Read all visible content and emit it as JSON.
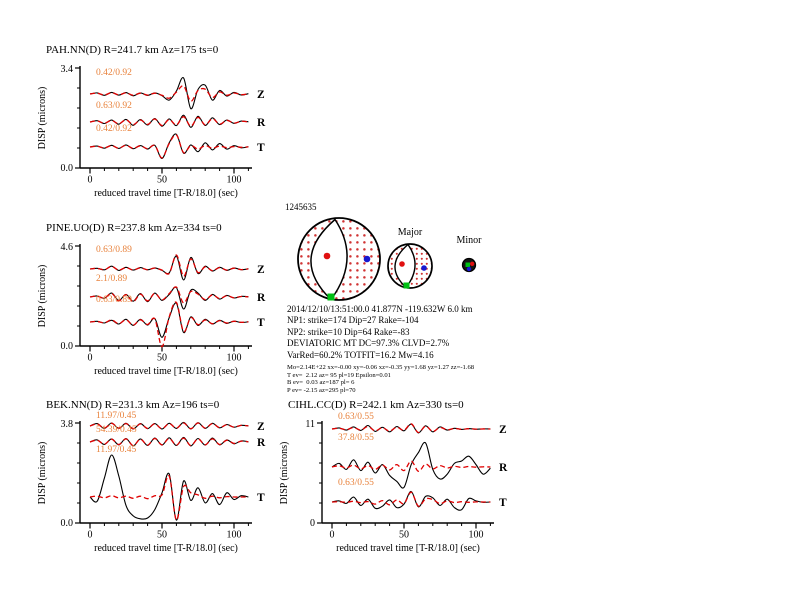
{
  "palette": {
    "observed_color": "#000000",
    "synthetic_color": "#e00000",
    "amp_label_color": "#e8823c",
    "stipple_color": "#d03434",
    "marker_red": "#e01010",
    "marker_green": "#00c014",
    "marker_blue": "#1818d0"
  },
  "event": {
    "id": "1245635",
    "major_label": "Major",
    "minor_label": "Minor",
    "info_lines": [
      "2014/12/10/13:51:00.0 41.877N -119.632W 6.0 km",
      "NP1: strike=174 Dip=27 Rake=-104",
      "NP2: strike=10 Dip=64 Rake=-83",
      "DEVIATORIC MT DC=97.3% CLVD=2.7%",
      "VarRed=60.2% TOTFIT=16.2 Mw=4.16"
    ],
    "mt_lines": [
      "Mo=2.14E+22 xx=-0.00 xy=-0.06 xz=-0.35 yy=1.68 yz=1.27 zz=-1.68",
      "T ev=  2.12 az= 95 pl=19 Epsilon=0.01",
      "B ev=  0.03 az=187 pl= 6",
      "P ev= -2.15 az=295 pl=70"
    ]
  },
  "chart_data": [
    {
      "type": "line",
      "title": "PAH.NN(D) R=241.7 km Az=175 ts=0",
      "xlabel": "reduced travel time [T-R/18.0] (sec)",
      "ylabel": "DISP (microns)",
      "xlim": [
        0,
        113
      ],
      "xticks": [
        0,
        50,
        100
      ],
      "sample_dt_sec": 5,
      "ymax_label": "3.4",
      "ymin_label": "0.0",
      "traces": [
        {
          "label": "Z",
          "amp_label": "0.42/0.92",
          "center": 38,
          "scale": 16,
          "data": [
            0,
            0.07,
            -0.08,
            0.1,
            -0.07,
            0.09,
            -0.11,
            0.07,
            -0.09,
            0.07,
            -0.1,
            -0.38,
            0.18,
            1.0,
            -0.92,
            0.28,
            0.55,
            -0.38,
            0.22,
            -0.13,
            0.1,
            -0.06,
            0.02
          ],
          "synth": [
            0,
            0.05,
            -0.06,
            0.08,
            -0.05,
            0.07,
            -0.08,
            0.05,
            -0.07,
            0.05,
            -0.08,
            -0.26,
            0.12,
            0.5,
            -0.45,
            0.22,
            0.3,
            -0.22,
            0.13,
            -0.08,
            0.06,
            -0.04,
            0.01
          ]
        },
        {
          "label": "R",
          "amp_label": "0.63/0.92",
          "center": 66,
          "scale": 11,
          "data": [
            0,
            0.12,
            -0.14,
            0.17,
            -0.2,
            0.24,
            -0.3,
            0.22,
            -0.27,
            0.32,
            -0.38,
            0.28,
            -0.33,
            0.62,
            -0.48,
            0.52,
            -0.32,
            0.38,
            -0.24,
            0.18,
            -0.12,
            0.08,
            0.02
          ],
          "synth": [
            0,
            0.1,
            -0.11,
            0.14,
            -0.16,
            0.2,
            -0.24,
            0.18,
            -0.22,
            0.27,
            -0.32,
            0.22,
            -0.27,
            0.48,
            -0.38,
            0.42,
            -0.26,
            0.3,
            -0.19,
            0.15,
            -0.1,
            0.06,
            0.01
          ]
        },
        {
          "label": "T",
          "amp_label": "0.42/0.92",
          "center": 91,
          "scale": 13,
          "data": [
            0,
            0.07,
            -0.09,
            0.13,
            -0.11,
            0.16,
            -0.13,
            0.11,
            -0.16,
            0.13,
            -0.88,
            0.32,
            0.98,
            -0.48,
            0.16,
            -0.36,
            0.32,
            -0.22,
            0.26,
            -0.16,
            0.1,
            -0.06,
            0.02
          ],
          "synth": [
            0,
            0.05,
            -0.07,
            0.11,
            -0.09,
            0.13,
            -0.11,
            0.09,
            -0.13,
            0.11,
            -0.84,
            0.27,
            0.93,
            -0.43,
            0.11,
            -0.16,
            0.11,
            -0.09,
            0.07,
            -0.05,
            0.03,
            -0.02,
            0.01
          ]
        }
      ]
    },
    {
      "type": "line",
      "title": "PINE.UO(D) R=237.8 km Az=334 ts=0",
      "xlabel": "reduced travel time [T-R/18.0] (sec)",
      "ylabel": "DISP (microns)",
      "xlim": [
        0,
        113
      ],
      "xticks": [
        0,
        50,
        100
      ],
      "sample_dt_sec": 5,
      "ymax_label": "4.6",
      "ymin_label": "0.0",
      "traces": [
        {
          "label": "Z",
          "amp_label": "0.63/0.89",
          "center": 35,
          "scale": 14,
          "data": [
            0,
            0.05,
            -0.06,
            0.2,
            -0.1,
            0.12,
            -0.08,
            0.1,
            -0.06,
            0.08,
            -0.1,
            -0.28,
            0.92,
            -0.78,
            0.82,
            -0.32,
            0.2,
            -0.15,
            0.12,
            -0.1,
            0.08,
            -0.05,
            0.02
          ],
          "synth": [
            0,
            0.04,
            -0.05,
            0.18,
            -0.08,
            0.1,
            -0.07,
            0.08,
            -0.05,
            0.07,
            -0.08,
            -0.32,
            1.0,
            -0.52,
            0.72,
            -0.26,
            0.16,
            -0.12,
            0.1,
            -0.08,
            0.06,
            -0.04,
            0.01
          ]
        },
        {
          "label": "R",
          "amp_label": "2.1/0.89",
          "center": 63,
          "scale": 13,
          "data": [
            0,
            0.08,
            -0.1,
            0.3,
            -0.26,
            0.2,
            -0.32,
            0.26,
            -0.36,
            0.3,
            -0.26,
            0.2,
            0.72,
            -0.92,
            0.52,
            0.3,
            -0.26,
            0.2,
            -0.16,
            0.12,
            -0.08,
            0.05,
            0.02
          ],
          "synth": [
            0,
            0.06,
            -0.08,
            0.28,
            -0.3,
            0.18,
            -0.36,
            0.22,
            -0.3,
            0.28,
            -0.22,
            0.26,
            0.76,
            -0.46,
            0.42,
            0.22,
            -0.2,
            0.16,
            -0.12,
            0.1,
            -0.06,
            0.04,
            0.01
          ]
        },
        {
          "label": "T",
          "amp_label": "0.63/0.89",
          "center": 88,
          "scale": 17,
          "data": [
            0,
            0.04,
            -0.06,
            0.1,
            -0.12,
            0.16,
            -0.2,
            0.16,
            -0.18,
            0.2,
            -0.9,
            0.26,
            1.1,
            -0.62,
            0.3,
            -0.2,
            0.16,
            -0.12,
            0.1,
            -0.08,
            0.05,
            -0.03,
            0.01
          ],
          "synth": [
            0,
            0.03,
            -0.05,
            0.12,
            -0.1,
            0.13,
            -0.18,
            0.13,
            -0.15,
            0.18,
            -1.45,
            0.3,
            1.15,
            -0.56,
            0.26,
            -0.16,
            0.12,
            -0.1,
            0.08,
            -0.06,
            0.04,
            -0.02,
            0.01
          ]
        }
      ]
    },
    {
      "type": "line",
      "title": "BEK.NN(D) R=231.3 km Az=196 ts=0",
      "xlabel": "reduced travel time [T-R/18.0] (sec)",
      "ylabel": "DISP (microns)",
      "xlim": [
        0,
        113
      ],
      "xticks": [
        0,
        50,
        100
      ],
      "sample_dt_sec": 5,
      "ymax_label": "3.8",
      "ymin_label": "0.0",
      "traces": [
        {
          "label": "Z",
          "amp_label": "11.97/0.45",
          "center": 15,
          "scale": 6,
          "data": [
            0,
            0.4,
            -0.4,
            0.5,
            -0.4,
            0.45,
            -0.5,
            0.4,
            -0.45,
            0.4,
            -0.5,
            0.45,
            -0.4,
            0.6,
            -0.5,
            0.55,
            -0.4,
            0.45,
            -0.3,
            0.25,
            -0.2,
            0.12,
            0.02
          ],
          "synth": [
            0,
            0.35,
            -0.35,
            0.45,
            -0.35,
            0.4,
            -0.45,
            0.35,
            -0.4,
            0.35,
            -0.45,
            0.4,
            -0.35,
            0.5,
            -0.45,
            0.5,
            -0.35,
            0.4,
            -0.28,
            0.22,
            -0.18,
            0.1,
            0.02
          ]
        },
        {
          "label": "R",
          "amp_label": "54.39/0.45",
          "center": 31,
          "scale": 7,
          "data": [
            0,
            0.3,
            -0.35,
            0.45,
            -0.4,
            0.5,
            -0.55,
            0.45,
            -0.5,
            0.55,
            -0.45,
            0.6,
            -0.5,
            0.65,
            -0.55,
            0.5,
            -0.45,
            0.55,
            -0.4,
            0.3,
            -0.25,
            0.15,
            0.02
          ],
          "synth": [
            0,
            0.25,
            -0.3,
            0.4,
            -0.35,
            0.45,
            -0.5,
            0.4,
            -0.45,
            0.5,
            -0.4,
            0.5,
            -0.45,
            0.55,
            -0.5,
            0.45,
            -0.4,
            0.45,
            -0.35,
            0.25,
            -0.2,
            0.12,
            0.02
          ]
        },
        {
          "label": "T",
          "amp_label": "11.97/0.45",
          "center": 86,
          "scale": 42,
          "data": [
            0,
            -0.1,
            0.45,
            1.0,
            0.5,
            -0.2,
            -0.45,
            -0.52,
            -0.5,
            -0.3,
            0.1,
            0.55,
            -0.55,
            0.38,
            -0.08,
            0.22,
            -0.14,
            0.08,
            -0.18,
            0.1,
            -0.06,
            0.03,
            0
          ],
          "synth": [
            0,
            0.02,
            -0.02,
            0.03,
            -0.02,
            0.02,
            -0.03,
            0.02,
            -0.04,
            0.03,
            0.05,
            0.5,
            -0.55,
            0.25,
            0.1,
            0.05,
            -0.03,
            0.02,
            -0.02,
            0.01,
            0,
            0,
            0
          ]
        }
      ]
    },
    {
      "type": "line",
      "title": "CIHL.CC(D) R=242.1 km Az=330 ts=0",
      "xlabel": "reduced travel time [T-R/18.0] (sec)",
      "ylabel": "DISP (microns)",
      "xlim": [
        0,
        113
      ],
      "xticks": [
        0,
        50,
        100
      ],
      "sample_dt_sec": 5,
      "ymax_label": "11",
      "ymin_label": "0",
      "traces": [
        {
          "label": "Z",
          "amp_label": "0.63/0.55",
          "center": 18,
          "scale": 7,
          "data": [
            0,
            0.15,
            -0.15,
            0.3,
            -0.2,
            0.5,
            -0.35,
            0.25,
            -0.4,
            0.35,
            -0.25,
            0.7,
            -0.55,
            0.45,
            -0.4,
            0.3,
            -0.15,
            0.1,
            -0.06,
            0.05,
            -0.03,
            0.02,
            0
          ],
          "synth": [
            0,
            0.1,
            -0.1,
            0.2,
            -0.15,
            0.35,
            -0.25,
            0.18,
            -0.3,
            0.25,
            -0.18,
            0.75,
            -0.5,
            0.4,
            -0.35,
            0.22,
            -0.12,
            0.08,
            -0.05,
            0.04,
            -0.02,
            0.01,
            0
          ]
        },
        {
          "label": "R",
          "amp_label": "37.8/0.55",
          "center": 56,
          "scale": 24,
          "data": [
            0,
            0.15,
            -0.1,
            0.3,
            -0.15,
            0.2,
            -0.25,
            0.1,
            -0.35,
            -0.6,
            -0.85,
            0.1,
            0.6,
            1.0,
            -0.1,
            -0.5,
            -0.3,
            0.15,
            0.25,
            0.45,
            0.1,
            -0.3,
            -0.05
          ],
          "synth": [
            0,
            0.05,
            -0.04,
            0.08,
            -0.08,
            0.06,
            -0.1,
            0.08,
            -0.12,
            0.1,
            -0.15,
            0.25,
            -0.18,
            0.12,
            -0.08,
            0.06,
            -0.04,
            0.03,
            -0.02,
            0.02,
            -0.01,
            0.01,
            0
          ]
        },
        {
          "label": "T",
          "amp_label": "0.63/0.55",
          "center": 91,
          "scale": 14,
          "data": [
            0,
            0.08,
            -0.1,
            0.35,
            -0.25,
            0.2,
            -0.45,
            -0.3,
            0.15,
            -0.4,
            -0.15,
            0.75,
            -0.35,
            0.4,
            0.3,
            -0.25,
            0.2,
            -0.4,
            -0.55,
            0.25,
            0.08,
            -0.02,
            0
          ],
          "synth": [
            0,
            0.02,
            -0.02,
            0.05,
            -0.04,
            0.03,
            -0.15,
            0.1,
            -0.2,
            0.15,
            -0.12,
            0.7,
            -0.3,
            0.22,
            0.18,
            -0.12,
            0.08,
            -0.04,
            0.02,
            -0.02,
            0.01,
            0,
            0
          ]
        }
      ]
    }
  ]
}
